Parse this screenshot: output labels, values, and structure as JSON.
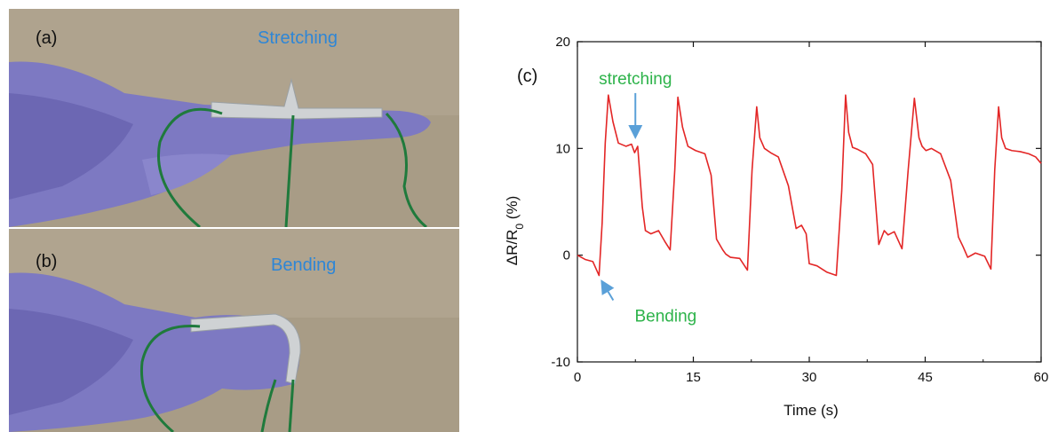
{
  "panels": {
    "a": {
      "label": "(a)",
      "caption": "Stretching"
    },
    "b": {
      "label": "(b)",
      "caption": "Bending"
    },
    "c": {
      "label": "(c)"
    }
  },
  "colors": {
    "curve": "#e32626",
    "arrow": "#5aa0d8",
    "annotation_text": "#2db34a",
    "caption_text": "#2e86d6"
  },
  "chart_data": {
    "type": "line",
    "title": "",
    "xlabel": "Time (s)",
    "ylabel": "ΔR/R0 (%)",
    "ylabel_main": "ΔR/R",
    "ylabel_sub": "0",
    "ylabel_unit": " (%)",
    "xlim": [
      0,
      60
    ],
    "ylim": [
      -10,
      20
    ],
    "xticks": [
      0,
      15,
      30,
      45,
      60
    ],
    "yticks": [
      -10,
      0,
      10,
      20
    ],
    "grid": false,
    "series": [
      {
        "name": "",
        "color": "#e32626",
        "x": [
          0,
          1,
          2,
          2.8,
          3.2,
          3.6,
          4.0,
          4.6,
          5.3,
          6.3,
          7.0,
          7.4,
          7.8,
          8.4,
          8.8,
          9.5,
          10.5,
          11.3,
          12.0,
          12.6,
          13.0,
          13.6,
          14.3,
          15.3,
          16.5,
          17.3,
          18.0,
          18.8,
          19.2,
          19.8,
          21.0,
          22.0,
          22.6,
          23.2,
          23.6,
          24.2,
          25.0,
          26.0,
          27.3,
          28.3,
          29.0,
          29.6,
          30.0,
          31.0,
          32.3,
          33.5,
          34.2,
          34.7,
          35.1,
          35.6,
          36.3,
          37.3,
          38.2,
          39.0,
          39.7,
          40.2,
          41.0,
          42.0,
          42.8,
          43.6,
          44.2,
          44.6,
          45.1,
          45.8,
          47.0,
          48.3,
          49.3,
          49.9,
          50.5,
          51.5,
          52.7,
          53.5,
          54.0,
          54.5,
          54.9,
          55.4,
          56.2,
          57.3,
          58.4,
          59.3,
          60
        ],
        "y": [
          0,
          -0.4,
          -0.6,
          -1.9,
          3,
          10.5,
          15,
          12.5,
          10.5,
          10.2,
          10.4,
          9.6,
          10.2,
          4.5,
          2.3,
          2.0,
          2.3,
          1.3,
          0.5,
          8,
          14.8,
          12,
          10.2,
          9.8,
          9.5,
          7.5,
          1.5,
          0.5,
          0.1,
          -0.2,
          -0.3,
          -1.4,
          8,
          13.9,
          11,
          10,
          9.6,
          9.2,
          6.5,
          2.5,
          2.8,
          2.0,
          -0.8,
          -1.0,
          -1.6,
          -1.9,
          6,
          15,
          11.5,
          10.1,
          9.9,
          9.5,
          8.5,
          1.0,
          2.3,
          1.9,
          2.2,
          0.6,
          8,
          14.7,
          11,
          10.2,
          9.8,
          10.0,
          9.5,
          7.0,
          1.7,
          0.8,
          -0.2,
          0.2,
          -0.1,
          -1.3,
          8,
          13.9,
          11.0,
          10.0,
          9.8,
          9.7,
          9.5,
          9.2,
          8.6
        ]
      }
    ],
    "annotations": [
      {
        "text": "stretching",
        "x": 7.5,
        "y": 10.2
      },
      {
        "text": "Bending",
        "x": 2.8,
        "y": -1.9
      }
    ]
  }
}
